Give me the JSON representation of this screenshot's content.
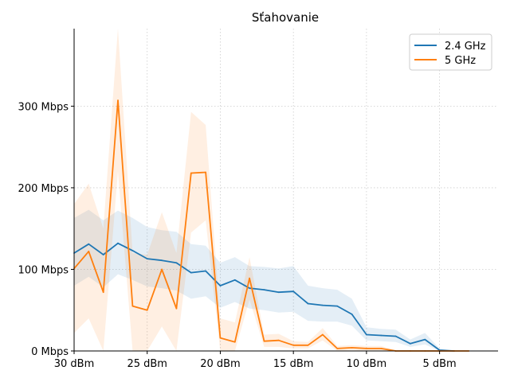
{
  "chart_data": {
    "type": "line",
    "title": "Sťahovanie",
    "xlabel": "",
    "ylabel": "",
    "x_reversed": true,
    "xlim": [
      30,
      1
    ],
    "ylim": [
      0,
      395
    ],
    "grid": true,
    "legend_position": "top-right",
    "x_ticks": [
      {
        "value": 30,
        "label": "30 dBm"
      },
      {
        "value": 25,
        "label": "25 dBm"
      },
      {
        "value": 20,
        "label": "20 dBm"
      },
      {
        "value": 15,
        "label": "15 dBm"
      },
      {
        "value": 10,
        "label": "10 dBm"
      },
      {
        "value": 5,
        "label": "5 dBm"
      }
    ],
    "y_ticks": [
      {
        "value": 0,
        "label": "0 Mbps"
      },
      {
        "value": 100,
        "label": "100 Mbps"
      },
      {
        "value": 200,
        "label": "200 Mbps"
      },
      {
        "value": 300,
        "label": "300 Mbps"
      }
    ],
    "x": [
      30,
      29,
      28,
      27,
      26,
      25,
      24,
      23,
      22,
      21,
      20,
      19,
      18,
      17,
      16,
      15,
      14,
      13,
      12,
      11,
      10,
      9,
      8,
      7,
      6,
      5,
      4,
      3
    ],
    "series": [
      {
        "name": "2.4 GHz",
        "color": "#1f77b4",
        "band_color": "#1f77b4",
        "values": [
          120,
          131,
          118,
          132,
          123,
          113,
          111,
          108,
          96,
          98,
          80,
          87,
          77,
          75,
          72,
          73,
          58,
          56,
          55,
          45,
          20,
          19,
          18,
          9,
          14,
          1,
          0,
          null
        ],
        "upper": [
          163,
          173,
          160,
          172,
          163,
          152,
          148,
          146,
          131,
          129,
          108,
          115,
          104,
          103,
          101,
          104,
          80,
          77,
          75,
          64,
          29,
          27,
          26,
          14,
          22,
          3,
          0,
          null
        ],
        "lower": [
          80,
          91,
          78,
          94,
          87,
          79,
          77,
          74,
          64,
          67,
          53,
          60,
          52,
          50,
          47,
          48,
          37,
          36,
          36,
          31,
          13,
          12,
          11,
          5,
          8,
          0,
          0,
          null
        ]
      },
      {
        "name": "5 GHz",
        "color": "#ff7f0e",
        "band_color": "#ff7f0e",
        "values": [
          101,
          122,
          72,
          307,
          55,
          50,
          100,
          52,
          218,
          219,
          16,
          11,
          89,
          12,
          13,
          7,
          7,
          20,
          3,
          4,
          3,
          3,
          0,
          0,
          0,
          0,
          0,
          0
        ],
        "upper": [
          180,
          205,
          150,
          395,
          120,
          118,
          170,
          120,
          293,
          277,
          40,
          35,
          115,
          20,
          21,
          12,
          11,
          28,
          6,
          7,
          6,
          6,
          1,
          1,
          1,
          1,
          1,
          0
        ],
        "lower": [
          22,
          40,
          0,
          220,
          0,
          0,
          30,
          0,
          145,
          160,
          0,
          0,
          63,
          5,
          5,
          3,
          3,
          13,
          0,
          1,
          0,
          0,
          0,
          0,
          0,
          0,
          0,
          0
        ]
      }
    ]
  }
}
